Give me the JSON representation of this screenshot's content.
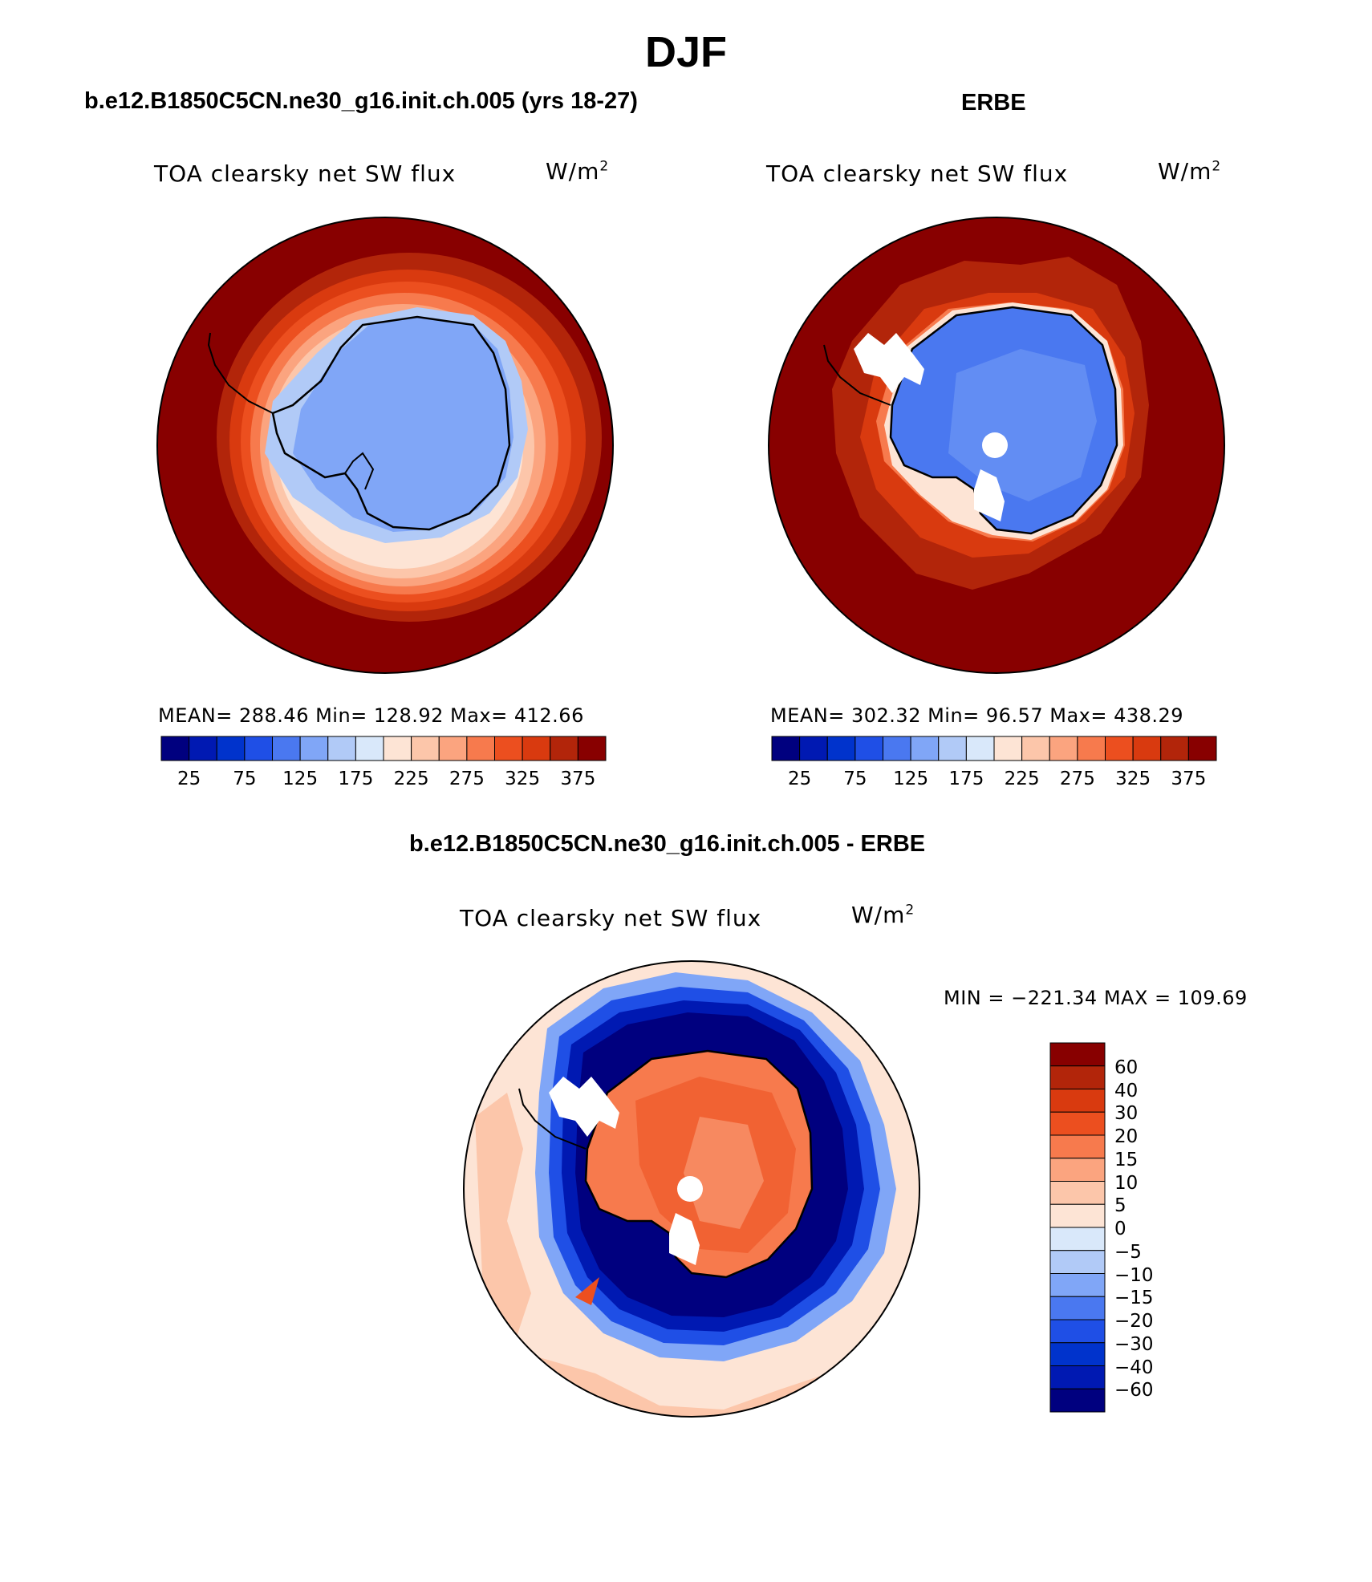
{
  "title": "DJF",
  "panels": [
    {
      "heading": "b.e12.B1850C5CN.ne30_g16.init.ch.005 (yrs 18-27)",
      "variable": "TOA clearsky net SW flux",
      "units_base": "W/m",
      "units_exp": "2",
      "stats": "MEAN= 288.46   Min= 128.92   Max= 412.66"
    },
    {
      "heading": "ERBE",
      "variable": "TOA clearsky net SW flux",
      "units_base": "W/m",
      "units_exp": "2",
      "stats": "MEAN= 302.32   Min=  96.57   Max= 438.29"
    },
    {
      "heading": "b.e12.B1850C5CN.ne30_g16.init.ch.005 - ERBE",
      "variable": "TOA clearsky net SW flux",
      "units_base": "W/m",
      "units_exp": "2",
      "stats": "MIN = −221.34 MAX = 109.69"
    }
  ],
  "colorbar_abs": {
    "ticks": [
      "25",
      "75",
      "125",
      "175",
      "225",
      "275",
      "325",
      "375"
    ],
    "colors": [
      "#00007f",
      "#0019b2",
      "#0033cc",
      "#1f4fe6",
      "#4a78f0",
      "#80a6f7",
      "#b1caf7",
      "#d9e8fa",
      "#fde4d5",
      "#fcc6aa",
      "#fba47f",
      "#f77a4d",
      "#ec4f1f",
      "#d93a0f",
      "#b2250a",
      "#880000"
    ]
  },
  "colorbar_diff": {
    "ticks": [
      "60",
      "40",
      "30",
      "20",
      "15",
      "10",
      "5",
      "0",
      "−5",
      "−10",
      "−15",
      "−20",
      "−30",
      "−40",
      "−60"
    ],
    "colors": [
      "#880000",
      "#b2250a",
      "#d93a0f",
      "#ec4f1f",
      "#f77a4d",
      "#fba47f",
      "#fcc6aa",
      "#fde4d5",
      "#d9e8fa",
      "#b1caf7",
      "#80a6f7",
      "#4a78f0",
      "#1f4fe6",
      "#0033cc",
      "#0019b2",
      "#00007f"
    ]
  }
}
